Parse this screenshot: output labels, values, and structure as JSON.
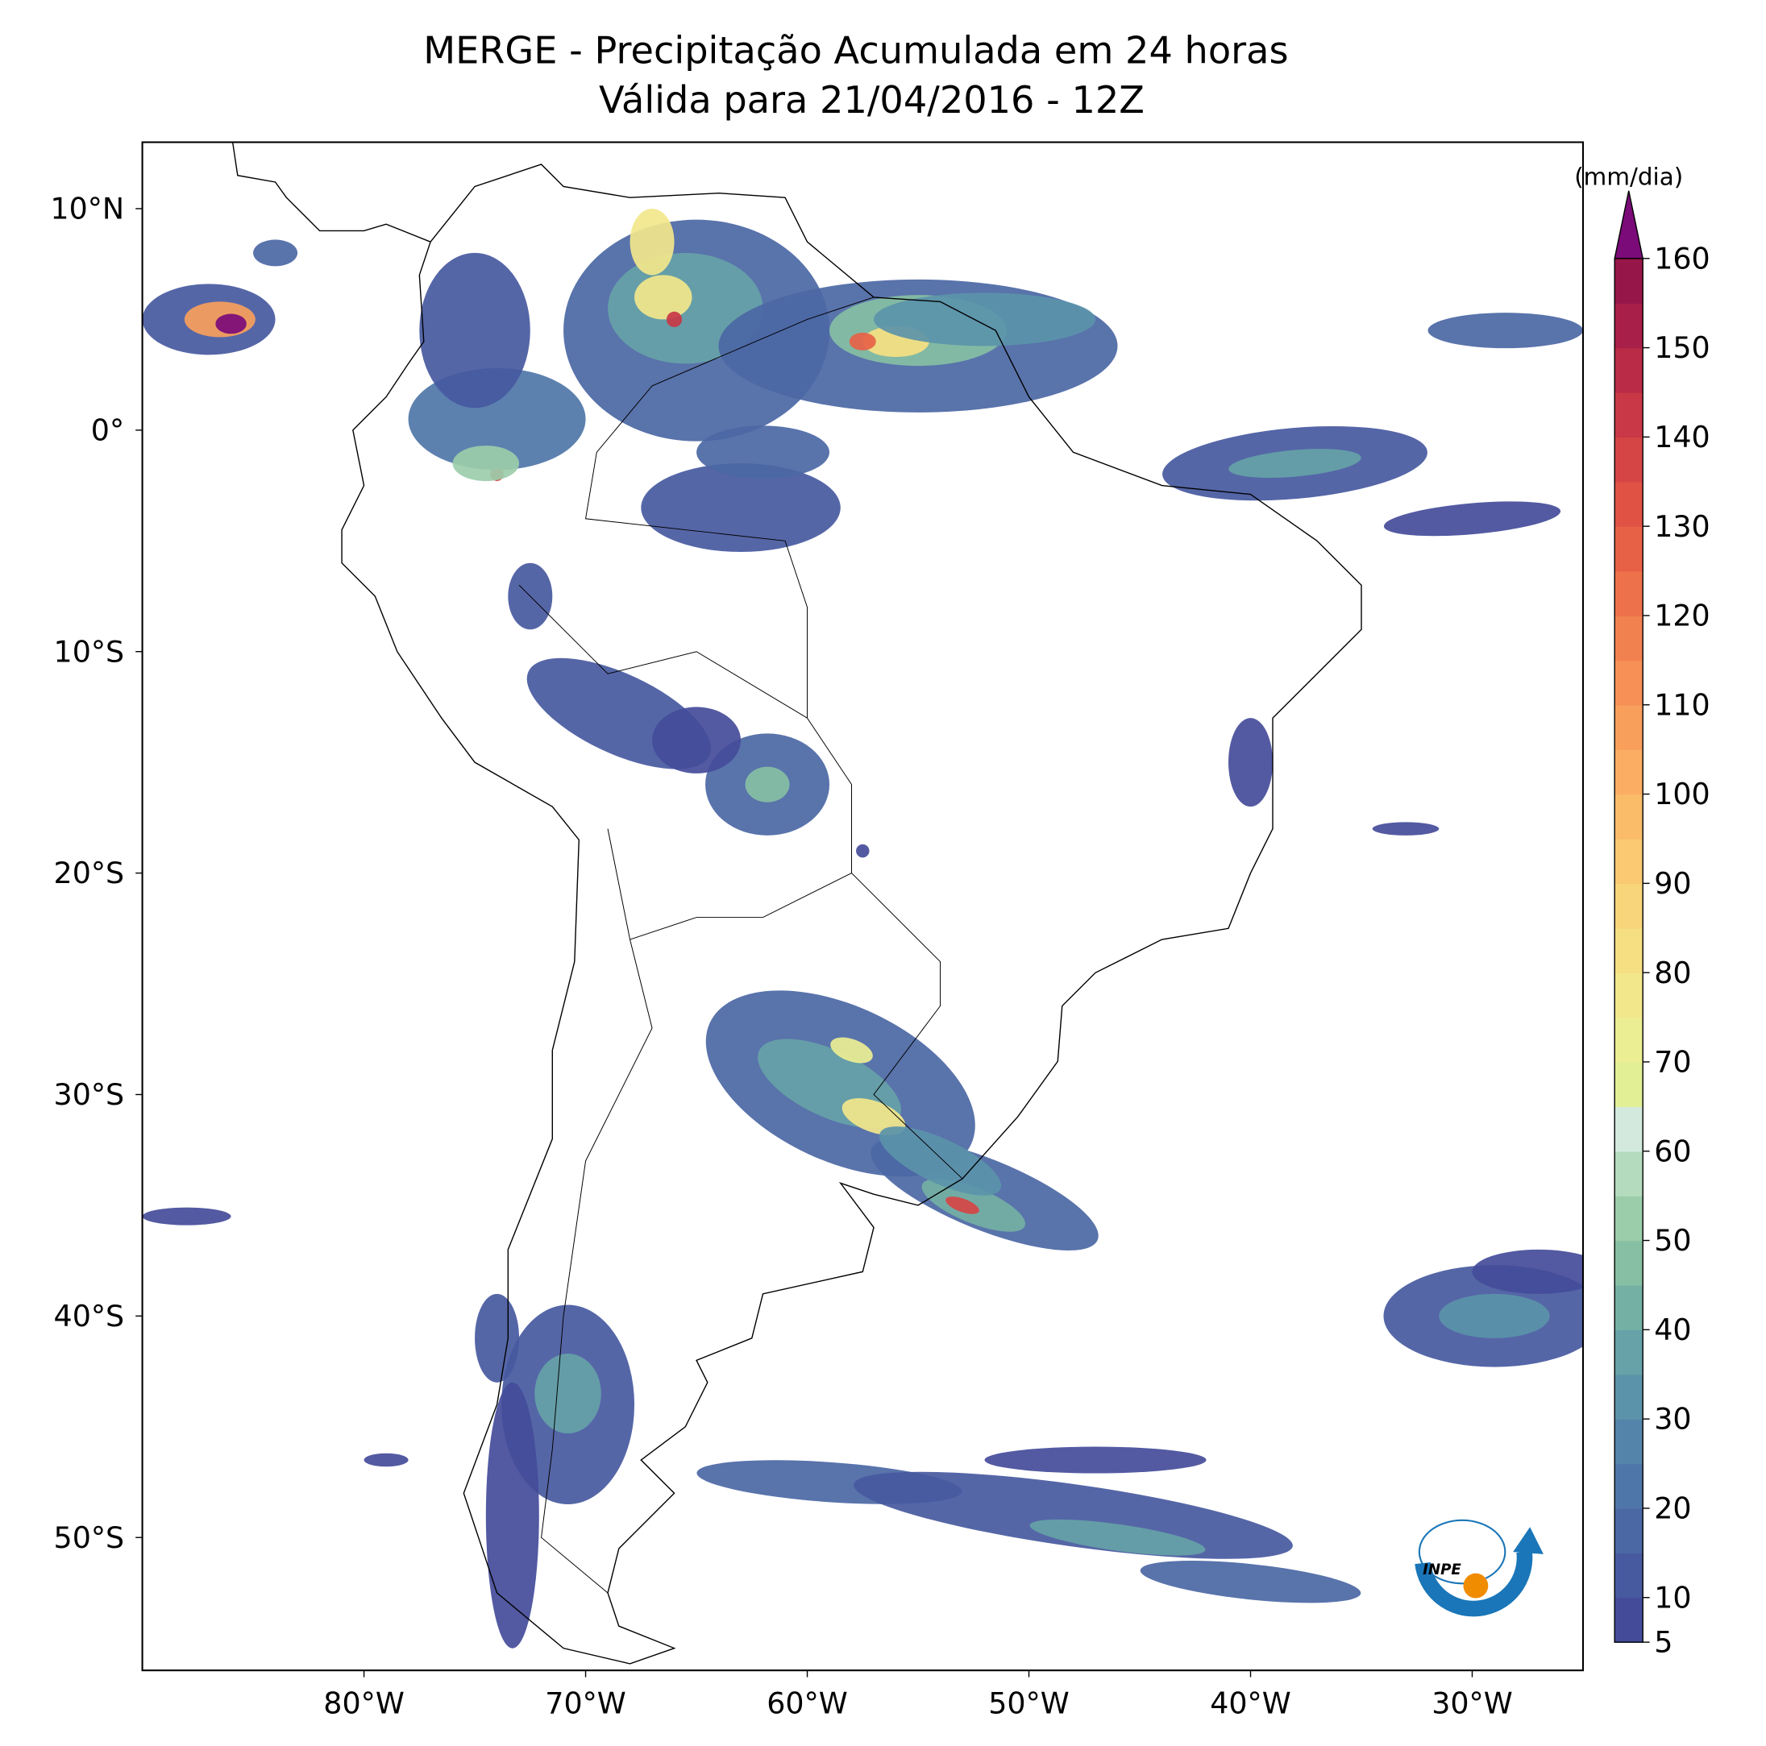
{
  "chart_data": {
    "type": "map",
    "title": "MERGE - Precipitação Acumulada em 24 horas",
    "subtitle": "Válida para 21/04/2016 - 12Z",
    "xlim": [
      -90,
      -25
    ],
    "ylim": [
      -56,
      13
    ],
    "xticks": [
      {
        "value": -80,
        "label": "80°W"
      },
      {
        "value": -70,
        "label": "70°W"
      },
      {
        "value": -60,
        "label": "60°W"
      },
      {
        "value": -50,
        "label": "50°W"
      },
      {
        "value": -40,
        "label": "40°W"
      },
      {
        "value": -30,
        "label": "30°W"
      }
    ],
    "yticks": [
      {
        "value": 10,
        "label": "10°N"
      },
      {
        "value": 0,
        "label": "0°"
      },
      {
        "value": -10,
        "label": "10°S"
      },
      {
        "value": -20,
        "label": "20°S"
      },
      {
        "value": -30,
        "label": "30°S"
      },
      {
        "value": -40,
        "label": "40°S"
      },
      {
        "value": -50,
        "label": "50°S"
      }
    ],
    "colorbar": {
      "label": "(mm/dia)",
      "lim": [
        5,
        160
      ],
      "ticks": [
        5,
        10,
        20,
        30,
        40,
        50,
        60,
        70,
        80,
        90,
        100,
        110,
        120,
        130,
        140,
        150,
        160
      ],
      "colors": [
        "#444c9a",
        "#47599f",
        "#4b67a4",
        "#4f76a8",
        "#5484aa",
        "#5b93aa",
        "#66a2a7",
        "#74b0a3",
        "#86bfa3",
        "#9ccdaa",
        "#b5dbbe",
        "#d3e9de",
        "#e3ef95",
        "#ecee93",
        "#f2e78b",
        "#f6df82",
        "#f8d57a",
        "#fac972",
        "#fbbc6a",
        "#fbae63",
        "#f99f5c",
        "#f69056",
        "#f28150",
        "#ed714a",
        "#e76146",
        "#df5244",
        "#d54545",
        "#c83846",
        "#b92b47",
        "#a81f49",
        "#961649"
      ],
      "over_color": "#7b0b78"
    },
    "logo": "INPE"
  }
}
